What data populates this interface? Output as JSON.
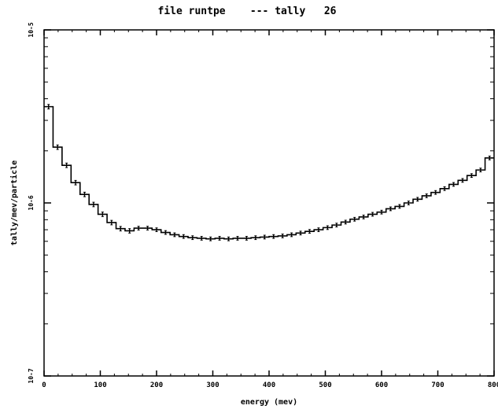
{
  "chart_data": {
    "type": "line",
    "title": "file runtpe    --- tally   26",
    "xlabel": "energy (mev)",
    "ylabel": "tally/mev/particle",
    "xlim": [
      0,
      800
    ],
    "ylim": [
      1e-07,
      1e-05
    ],
    "yscale": "log",
    "xticks": [
      "0",
      "100",
      "200",
      "300",
      "400",
      "500",
      "600",
      "700",
      "800"
    ],
    "yticks": [
      "10-7",
      "10-6",
      "10-5"
    ],
    "grid": false,
    "legend": "none",
    "step_width": 16,
    "series": [
      {
        "x": [
          0,
          16,
          32,
          48,
          64,
          80,
          96,
          112,
          128,
          144,
          160,
          176,
          192,
          208,
          224,
          240,
          256,
          272,
          288,
          304,
          320,
          336,
          352,
          368,
          384,
          400,
          416,
          432,
          448,
          464,
          480,
          496,
          512,
          528,
          544,
          560,
          576,
          592,
          608,
          624,
          640,
          656,
          672,
          688,
          704,
          720,
          736,
          752,
          768,
          784
        ],
        "y": [
          3.6e-06,
          2.1e-06,
          1.65e-06,
          1.31e-06,
          1.12e-06,
          9.8e-07,
          8.6e-07,
          7.7e-07,
          7.1e-07,
          6.9e-07,
          7.15e-07,
          7.15e-07,
          7e-07,
          6.75e-07,
          6.55e-07,
          6.4e-07,
          6.3e-07,
          6.25e-07,
          6.2e-07,
          6.25e-07,
          6.2e-07,
          6.25e-07,
          6.25e-07,
          6.3e-07,
          6.35e-07,
          6.4e-07,
          6.45e-07,
          6.55e-07,
          6.7e-07,
          6.85e-07,
          7e-07,
          7.2e-07,
          7.45e-07,
          7.75e-07,
          8.05e-07,
          8.3e-07,
          8.6e-07,
          8.85e-07,
          9.25e-07,
          9.55e-07,
          1e-06,
          1.05e-06,
          1.1e-06,
          1.15e-06,
          1.21e-06,
          1.28e-06,
          1.35e-06,
          1.44e-06,
          1.55e-06,
          1.82e-06
        ],
        "err": [
          0.03,
          0.03,
          0.03,
          0.03,
          0.03,
          0.03,
          0.03,
          0.03,
          0.03,
          0.03,
          0.025,
          0.025,
          0.025,
          0.025,
          0.025,
          0.025,
          0.025,
          0.025,
          0.025,
          0.025,
          0.025,
          0.025,
          0.025,
          0.025,
          0.025,
          0.025,
          0.025,
          0.025,
          0.025,
          0.025,
          0.025,
          0.025,
          0.025,
          0.025,
          0.025,
          0.025,
          0.025,
          0.025,
          0.025,
          0.025,
          0.025,
          0.025,
          0.025,
          0.025,
          0.025,
          0.025,
          0.025,
          0.025,
          0.025,
          0.025
        ]
      }
    ]
  }
}
